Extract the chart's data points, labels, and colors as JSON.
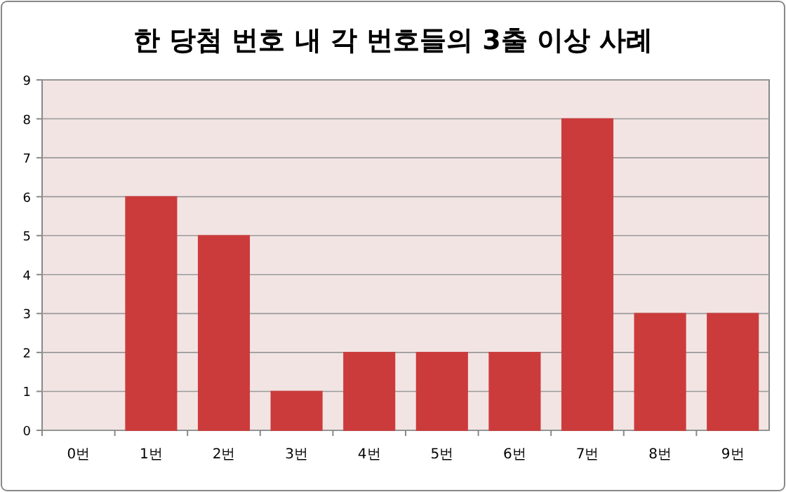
{
  "chart_data": {
    "type": "bar",
    "title": "한 당첨 번호 내 각 번호들의 3출 이상 사례",
    "categories": [
      "0번",
      "1번",
      "2번",
      "3번",
      "4번",
      "5번",
      "6번",
      "7번",
      "8번",
      "9번"
    ],
    "values": [
      0,
      6,
      5,
      1,
      2,
      2,
      2,
      8,
      3,
      3
    ],
    "color": "#cc3b3b",
    "ylim": [
      0,
      9
    ],
    "yticks": [
      0,
      1,
      2,
      3,
      4,
      5,
      6,
      7,
      8,
      9
    ],
    "grid": "y"
  }
}
